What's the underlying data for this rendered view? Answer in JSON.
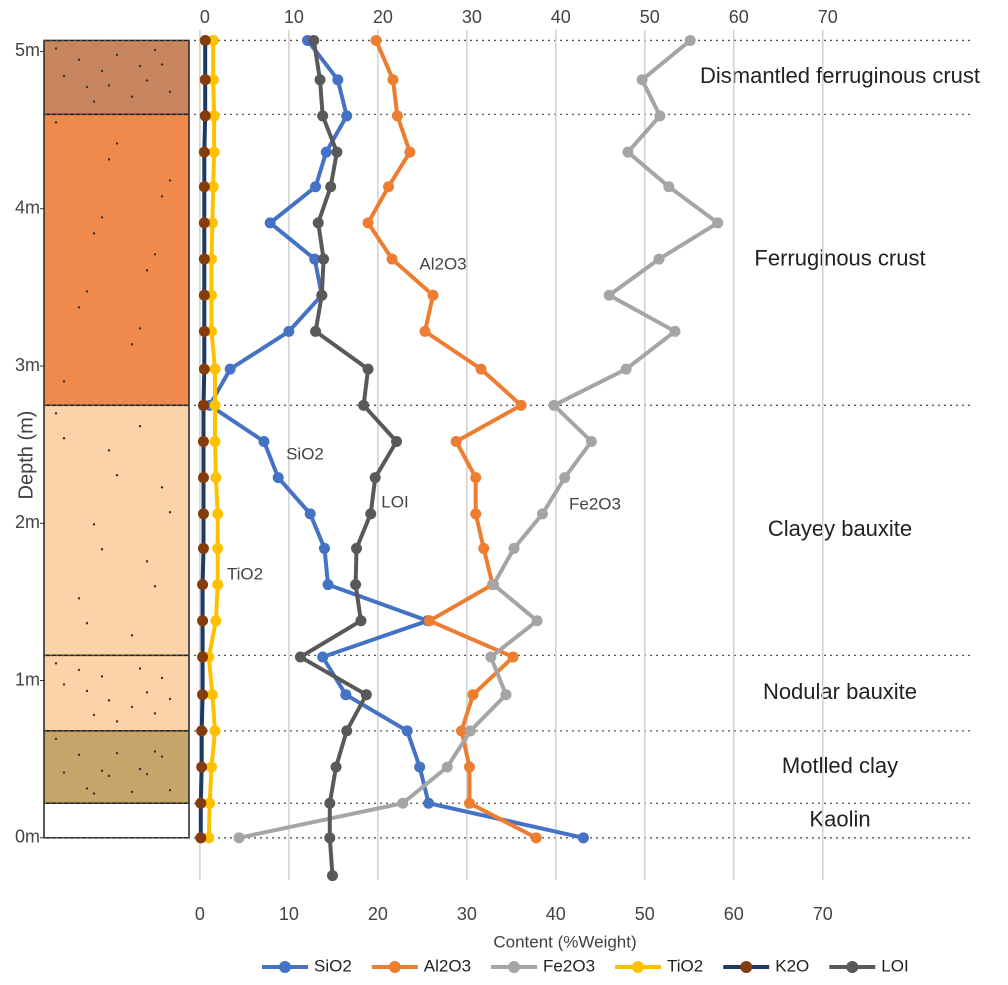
{
  "chart_data": {
    "type": "line",
    "orientation": "vertical-profile",
    "x_label": "Content (%Weight)",
    "y_label": "Depth (m)",
    "xlim": [
      -1,
      87
    ],
    "xticks": [
      0,
      10,
      20,
      30,
      40,
      50,
      60,
      70
    ],
    "ylim": [
      -0.3,
      5.2
    ],
    "yticks": [
      {
        "value": 0,
        "label": "0m"
      },
      {
        "value": 1,
        "label": "1m"
      },
      {
        "value": 2,
        "label": "2m"
      },
      {
        "value": 3,
        "label": "3m"
      },
      {
        "value": 4,
        "label": "4m"
      },
      {
        "value": 5,
        "label": "5m"
      }
    ],
    "grid": true,
    "y": [
      5.07,
      4.82,
      4.59,
      4.36,
      4.14,
      3.91,
      3.68,
      3.45,
      3.22,
      2.98,
      2.75,
      2.52,
      2.29,
      2.06,
      1.84,
      1.61,
      1.38,
      1.15,
      0.91,
      0.68,
      0.45,
      0.22,
      0,
      -0.24
    ],
    "series": [
      {
        "name": "SiO2",
        "color": "#4472c4",
        "values": [
          12.1,
          15.5,
          16.5,
          14.2,
          13.0,
          7.9,
          12.9,
          13.7,
          10.0,
          3.4,
          1.1,
          7.2,
          8.8,
          12.4,
          14.0,
          14.4,
          25.6,
          13.8,
          16.4,
          23.3,
          24.7,
          25.7,
          43.1,
          null
        ]
      },
      {
        "name": "Al2O3",
        "color": "#ed7d31",
        "values": [
          19.8,
          21.7,
          22.2,
          23.6,
          21.2,
          18.9,
          21.6,
          26.2,
          25.3,
          31.6,
          36.1,
          28.8,
          31.0,
          31.0,
          31.9,
          32.9,
          25.8,
          35.2,
          30.7,
          29.4,
          30.3,
          30.3,
          37.8,
          null
        ]
      },
      {
        "name": "Fe2O3",
        "color": "#a5a5a5",
        "values": [
          55.1,
          49.7,
          51.7,
          48.1,
          52.7,
          58.2,
          51.6,
          46.0,
          53.4,
          47.9,
          39.8,
          44.0,
          41.0,
          38.5,
          35.3,
          33.0,
          37.9,
          32.7,
          34.4,
          30.4,
          27.8,
          22.8,
          4.4,
          null
        ]
      },
      {
        "name": "TiO2",
        "color": "#ffc000",
        "values": [
          1.5,
          1.5,
          1.6,
          1.6,
          1.5,
          1.4,
          1.3,
          1.3,
          1.3,
          1.7,
          1.7,
          1.7,
          1.8,
          2.0,
          2.0,
          2.0,
          1.8,
          1.0,
          1.4,
          1.7,
          1.3,
          1.1,
          1.0,
          null
        ]
      },
      {
        "name": "K2O",
        "color": "#1f3864",
        "marker_color": "#843c0c",
        "values": [
          0.6,
          0.6,
          0.6,
          0.5,
          0.5,
          0.5,
          0.5,
          0.5,
          0.5,
          0.5,
          0.4,
          0.4,
          0.4,
          0.4,
          0.4,
          0.3,
          0.3,
          0.3,
          0.3,
          0.2,
          0.2,
          0.1,
          0.1,
          null
        ]
      },
      {
        "name": "LOI",
        "color": "#595959",
        "values": [
          12.8,
          13.5,
          13.8,
          15.4,
          14.7,
          13.3,
          13.9,
          13.7,
          13.0,
          18.9,
          18.4,
          22.1,
          19.7,
          19.2,
          17.6,
          17.5,
          18.1,
          11.3,
          18.7,
          16.5,
          15.3,
          14.6,
          14.6,
          14.9
        ]
      }
    ],
    "zones": [
      {
        "name": "Dismantled ferruginous crust",
        "top": 5.07,
        "bottom": 4.6,
        "color": "#c8865f"
      },
      {
        "name": "Ferruginous crust",
        "top": 4.6,
        "bottom": 2.75,
        "color": "#f08a4c"
      },
      {
        "name": "Clayey bauxite",
        "top": 2.75,
        "bottom": 1.16,
        "color": "#fcd3a8"
      },
      {
        "name": "Nodular bauxite",
        "top": 1.16,
        "bottom": 0.68,
        "color": "#fcd3a8"
      },
      {
        "name": "Motlled clay",
        "top": 0.68,
        "bottom": 0.22,
        "color": "#c6a56b"
      },
      {
        "name": "Kaolin",
        "top": 0.22,
        "bottom": 0,
        "color": "#ffffff"
      }
    ]
  }
}
